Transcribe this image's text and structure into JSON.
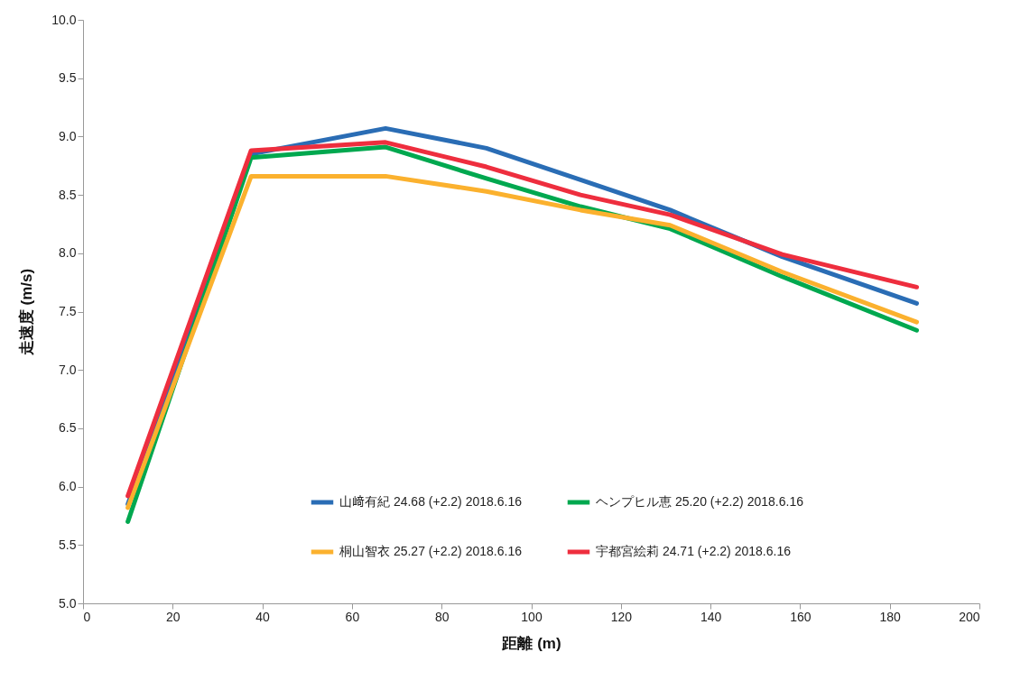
{
  "chart_data": {
    "type": "line",
    "xlabel": "距離 (m)",
    "ylabel": "走速度 (m/s)",
    "x": [
      10,
      37.5,
      67.5,
      90,
      111,
      131,
      156,
      186
    ],
    "xlim": [
      0,
      200
    ],
    "xticks": [
      0,
      20,
      40,
      60,
      80,
      100,
      120,
      140,
      160,
      180,
      200
    ],
    "ylim": [
      5,
      10
    ],
    "yticks": [
      {
        "value": 5,
        "label": "5.0"
      },
      {
        "value": 5.5,
        "label": "5.5"
      },
      {
        "value": 6,
        "label": "6.0"
      },
      {
        "value": 6.5,
        "label": "6.5"
      },
      {
        "value": 7,
        "label": "7.0"
      },
      {
        "value": 7.5,
        "label": "7.5"
      },
      {
        "value": 8,
        "label": "8.0"
      },
      {
        "value": 8.5,
        "label": "8.5"
      },
      {
        "value": 9,
        "label": "9.0"
      },
      {
        "value": 9.5,
        "label": "9.5"
      },
      {
        "value": 10,
        "label": "10.0"
      }
    ],
    "grid": false,
    "legend": "bottom right",
    "marker": "none",
    "line_style": "solid",
    "series": [
      {
        "name": "山﨑有紀 24.68 (+2.2) 2018.6.16",
        "color": "#2a6db5",
        "values": [
          5.85,
          8.85,
          9.07,
          8.9,
          8.63,
          8.37,
          7.97,
          7.57
        ]
      },
      {
        "name": "ヘンプヒル恵  25.20 (+2.2) 2018.6.16",
        "color": "#00a84f",
        "values": [
          5.7,
          8.82,
          8.91,
          8.64,
          8.4,
          8.21,
          7.8,
          7.34
        ]
      },
      {
        "name": "桐山智衣 25.27 (+2.2) 2018.6.16",
        "color": "#fbb12e",
        "values": [
          5.82,
          8.66,
          8.66,
          8.53,
          8.37,
          8.24,
          7.84,
          7.41
        ]
      },
      {
        "name": "宇都宮絵莉  24.71 (+2.2) 2018.6.16",
        "color": "#ee2e3e",
        "values": [
          5.92,
          8.88,
          8.95,
          8.74,
          8.5,
          8.33,
          7.99,
          7.71
        ]
      }
    ]
  }
}
